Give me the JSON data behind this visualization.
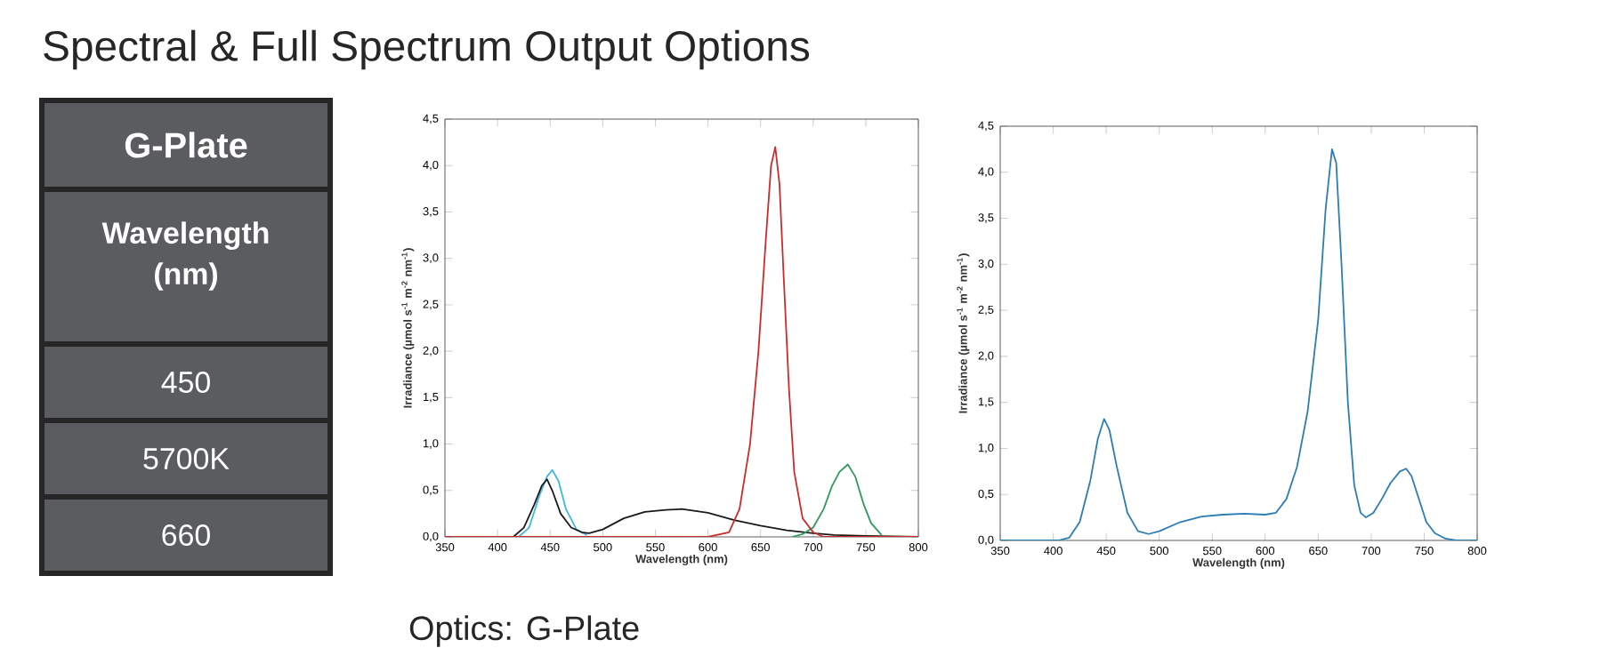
{
  "chart_data": [
    {
      "type": "other",
      "title": "Spectral & Full Spectrum Output Options",
      "annotations": [
        "G-Plate",
        "Wavelength (nm)",
        "450",
        "5700K",
        "660",
        "Optics: G-Plate"
      ]
    },
    {
      "type": "line",
      "xlabel": "Wavelength (nm)",
      "ylabel": "Irradiance (µmol s$^{-1}$ m$^{-2}$ nm$^{-1}$)",
      "xlim": [
        350,
        800
      ],
      "ylim": [
        0,
        4.5
      ],
      "xticks": [
        350,
        400,
        450,
        500,
        550,
        600,
        650,
        700,
        750,
        800
      ],
      "yticks": [
        {
          "value": 0,
          "label": "0,0"
        },
        {
          "value": 0.5,
          "label": "0,5"
        },
        {
          "value": 1,
          "label": "1,0"
        },
        {
          "value": 1.5,
          "label": "1,5"
        },
        {
          "value": 2,
          "label": "2,0"
        },
        {
          "value": 2.5,
          "label": "2,5"
        },
        {
          "value": 3,
          "label": "3,0"
        },
        {
          "value": 3.5,
          "label": "3,5"
        },
        {
          "value": 4,
          "label": "4,0"
        },
        {
          "value": 4.5,
          "label": "4,5"
        }
      ],
      "series": [
        {
          "color": "#3fb7e0",
          "x": [
            420,
            430,
            440,
            447,
            452,
            458,
            465,
            475,
            485
          ],
          "values": [
            0,
            0.1,
            0.45,
            0.65,
            0.72,
            0.6,
            0.3,
            0.08,
            0.02
          ]
        },
        {
          "color": "#1a1a1a",
          "x": [
            350,
            415,
            425,
            435,
            442,
            447,
            452,
            460,
            470,
            480,
            487,
            500,
            520,
            540,
            560,
            575,
            600,
            625,
            650,
            675,
            700,
            720,
            750,
            800
          ],
          "values": [
            0,
            0,
            0.1,
            0.35,
            0.55,
            0.62,
            0.5,
            0.25,
            0.1,
            0.05,
            0.04,
            0.08,
            0.2,
            0.27,
            0.29,
            0.3,
            0.26,
            0.18,
            0.12,
            0.07,
            0.04,
            0.02,
            0.01,
            0
          ]
        },
        {
          "color": "#2e9a5c",
          "x": [
            680,
            690,
            700,
            710,
            718,
            725,
            733,
            740,
            748,
            755,
            765
          ],
          "values": [
            0,
            0.03,
            0.1,
            0.3,
            0.55,
            0.7,
            0.78,
            0.65,
            0.35,
            0.15,
            0.02
          ]
        },
        {
          "color": "#cc2b2b",
          "x": [
            350,
            600,
            620,
            630,
            640,
            648,
            655,
            660,
            664,
            668,
            672,
            677,
            682,
            690,
            700,
            710,
            800
          ],
          "values": [
            0,
            0,
            0.05,
            0.3,
            1.0,
            2.0,
            3.2,
            4.0,
            4.2,
            3.8,
            2.8,
            1.6,
            0.7,
            0.2,
            0.05,
            0,
            0
          ]
        }
      ]
    },
    {
      "type": "line",
      "xlabel": "Wavelength (nm)",
      "ylabel": "Irradiance (µmol s$^{-1}$ m$^{-2}$ nm$^{-1}$)",
      "xlim": [
        350,
        800
      ],
      "ylim": [
        0,
        4.5
      ],
      "xticks": [
        350,
        400,
        450,
        500,
        550,
        600,
        650,
        700,
        750,
        800
      ],
      "yticks": [
        {
          "value": 0,
          "label": "0,0"
        },
        {
          "value": 0.5,
          "label": "0,5"
        },
        {
          "value": 1,
          "label": "1,0"
        },
        {
          "value": 1.5,
          "label": "1,5"
        },
        {
          "value": 2,
          "label": "2,0"
        },
        {
          "value": 2.5,
          "label": "2,5"
        },
        {
          "value": 3,
          "label": "3,0"
        },
        {
          "value": 3.5,
          "label": "3,5"
        },
        {
          "value": 4,
          "label": "4,0"
        },
        {
          "value": 4.5,
          "label": "4,5"
        }
      ],
      "series": [
        {
          "color": "#2a7db5",
          "x": [
            350,
            405,
            415,
            425,
            435,
            442,
            448,
            453,
            460,
            470,
            480,
            490,
            500,
            520,
            540,
            560,
            580,
            600,
            610,
            620,
            630,
            640,
            650,
            657,
            663,
            667,
            672,
            678,
            684,
            690,
            695,
            702,
            710,
            718,
            727,
            733,
            738,
            745,
            752,
            760,
            770,
            780,
            800
          ],
          "values": [
            0,
            0,
            0.03,
            0.2,
            0.65,
            1.1,
            1.32,
            1.2,
            0.8,
            0.3,
            0.1,
            0.07,
            0.1,
            0.2,
            0.26,
            0.28,
            0.29,
            0.28,
            0.3,
            0.45,
            0.8,
            1.4,
            2.4,
            3.6,
            4.25,
            4.1,
            3.0,
            1.5,
            0.6,
            0.3,
            0.25,
            0.3,
            0.45,
            0.62,
            0.75,
            0.78,
            0.7,
            0.45,
            0.2,
            0.08,
            0.02,
            0,
            0
          ]
        }
      ]
    }
  ]
}
